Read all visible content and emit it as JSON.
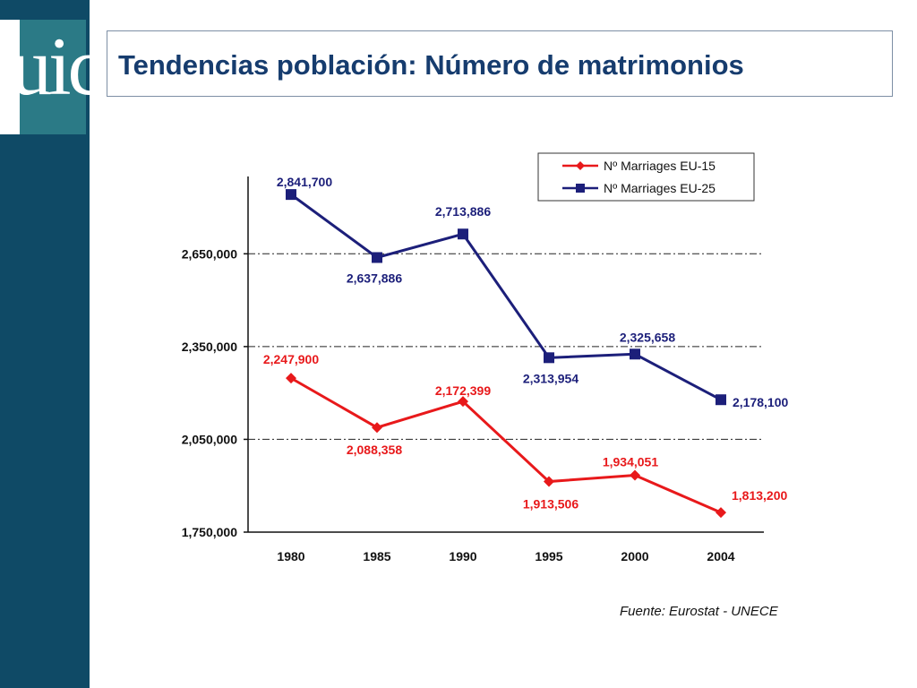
{
  "logo": {
    "text": "uic"
  },
  "title": "Tendencias población: Número de matrimonios",
  "source": "Fuente: Eurostat - UNECE",
  "colors": {
    "sidebar": "#0f4a66",
    "logo": "#2b7a86",
    "title": "#163c6e",
    "eu15": "#e8191b",
    "eu25": "#1c1f7a"
  },
  "chart_data": {
    "type": "line",
    "categories": [
      "1980",
      "1985",
      "1990",
      "1995",
      "2000",
      "2004"
    ],
    "ylim": [
      1750000,
      2900000
    ],
    "yticks": [
      1750000,
      2050000,
      2350000,
      2650000
    ],
    "ytick_labels": [
      "1,750,000",
      "2,050,000",
      "2,350,000",
      "2,650,000"
    ],
    "grid": "horizontal dash-dot at 2,050,000 / 2,350,000 / 2,650,000",
    "legend_position": "top-right",
    "series": [
      {
        "name": "Nº Marriages EU-15",
        "marker": "diamond",
        "values": [
          2247900,
          2088358,
          2172399,
          1913506,
          1934051,
          1813200
        ],
        "labels": [
          "2,247,900",
          "2,088,358",
          "2,172,399",
          "1,913,506",
          "1,934,051",
          "1,813,200"
        ]
      },
      {
        "name": "Nº Marriages EU-25",
        "marker": "square",
        "values": [
          2841700,
          2637886,
          2713886,
          2313954,
          2325658,
          2178100
        ],
        "labels": [
          "2,841,700",
          "2,637,886",
          "2,713,886",
          "2,313,954",
          "2,325,658",
          "2,178,100"
        ]
      }
    ]
  }
}
